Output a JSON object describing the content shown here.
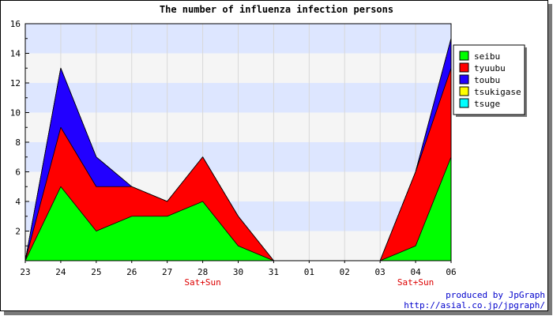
{
  "chart_data": {
    "type": "area",
    "title": "The number of influenza infection persons",
    "categories": [
      "23",
      "24",
      "25",
      "26",
      "27",
      "28",
      "30",
      "31",
      "01",
      "02",
      "03",
      "04",
      "06"
    ],
    "category_notes": [
      "",
      "",
      "",
      "",
      "",
      "Sat+Sun",
      "",
      "",
      "",
      "",
      "",
      "Sat+Sun",
      ""
    ],
    "stacked": true,
    "series": [
      {
        "name": "seibu",
        "color": "#00ff00",
        "values": [
          0,
          5,
          2,
          3,
          3,
          4,
          1,
          0,
          0,
          0,
          0,
          1,
          7
        ]
      },
      {
        "name": "tyuubu",
        "color": "#ff0000",
        "values": [
          0,
          4,
          3,
          2,
          1,
          3,
          2,
          0,
          0,
          0,
          0,
          5,
          6
        ]
      },
      {
        "name": "toubu",
        "color": "#2200ff",
        "values": [
          0,
          4,
          2,
          0,
          0,
          0,
          0,
          0,
          0,
          0,
          0,
          0,
          2
        ]
      },
      {
        "name": "tsukigase",
        "color": "#ffff00",
        "values": [
          0,
          0,
          0,
          0,
          0,
          0,
          0,
          0,
          0,
          0,
          0,
          0,
          0
        ]
      },
      {
        "name": "tsuge",
        "color": "#00ffff",
        "values": [
          0,
          0,
          0,
          0,
          0,
          0,
          0,
          0,
          0,
          0,
          0,
          0,
          0
        ]
      }
    ],
    "ylim": [
      0,
      16
    ],
    "yticks": [
      2,
      4,
      6,
      8,
      10,
      12,
      14,
      16
    ],
    "band_colors": [
      "#f5f5f5",
      "#dde6ff"
    ],
    "legend_position": "right",
    "grid": true
  },
  "credits": {
    "line1": "produced by JpGraph",
    "line2": "http://asial.co.jp/jpgraph/"
  }
}
